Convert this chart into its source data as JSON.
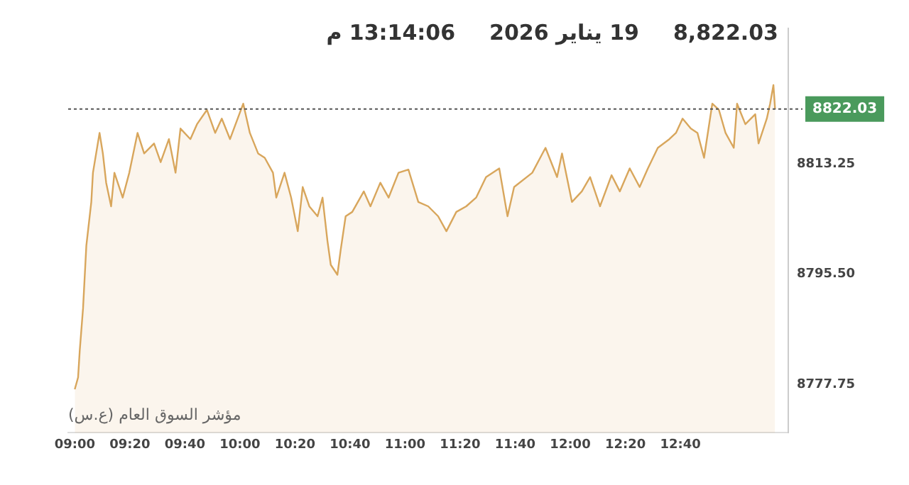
{
  "chart_data": {
    "type": "area",
    "title": "8,822.03",
    "annotations": [
      "19 يناير 2026",
      "13:14:06 م",
      "مؤشر السوق العام (ع.س)"
    ],
    "x": [
      9.0,
      9.02,
      9.03,
      9.05,
      9.07,
      9.1,
      9.11,
      9.15,
      9.17,
      9.19,
      9.22,
      9.24,
      9.29,
      9.33,
      9.38,
      9.42,
      9.48,
      9.52,
      9.57,
      9.61,
      9.64,
      9.7,
      9.74,
      9.8,
      9.85,
      9.89,
      9.94,
      10.02,
      10.06,
      10.11,
      10.15,
      10.2,
      10.22,
      10.27,
      10.31,
      10.35,
      10.38,
      10.42,
      10.47,
      10.5,
      10.53,
      10.55,
      10.59,
      10.61,
      10.64,
      10.68,
      10.75,
      10.79,
      10.85,
      10.9,
      10.96,
      11.02,
      11.08,
      11.14,
      11.2,
      11.25,
      11.31,
      11.37,
      11.43,
      11.49,
      11.57,
      11.62,
      11.66,
      11.77,
      11.85,
      11.92,
      11.95,
      12.01,
      12.07,
      12.12,
      12.18,
      12.25,
      12.3,
      12.36,
      12.42,
      12.47,
      12.53,
      12.6,
      12.64,
      12.68,
      12.73,
      12.77,
      12.81,
      12.86,
      12.9,
      12.94,
      12.99,
      13.01,
      13.06,
      13.12,
      13.14,
      13.19,
      13.21,
      13.23,
      13.24
    ],
    "series": [
      {
        "color": "#d8a65c",
        "values": [
          8777.0,
          8778.9,
          8783.2,
          8790.0,
          8800.1,
          8807.1,
          8811.8,
          8818.2,
          8814.9,
          8810.2,
          8806.4,
          8811.8,
          8807.8,
          8811.8,
          8818.2,
          8814.9,
          8816.5,
          8813.5,
          8817.2,
          8811.8,
          8818.9,
          8817.2,
          8819.6,
          8821.9,
          8818.2,
          8820.5,
          8817.2,
          8822.9,
          8818.2,
          8814.9,
          8814.2,
          8811.8,
          8807.8,
          8811.8,
          8807.8,
          8802.4,
          8809.5,
          8806.4,
          8804.8,
          8807.8,
          8800.8,
          8797.0,
          8795.4,
          8799.4,
          8804.8,
          8805.5,
          8808.8,
          8806.4,
          8810.2,
          8807.8,
          8811.8,
          8812.3,
          8807.1,
          8806.4,
          8804.8,
          8802.4,
          8805.5,
          8806.4,
          8807.8,
          8811.1,
          8812.5,
          8804.8,
          8809.5,
          8811.8,
          8815.8,
          8811.1,
          8814.9,
          8807.1,
          8808.8,
          8811.1,
          8806.4,
          8811.4,
          8808.8,
          8812.5,
          8809.5,
          8812.5,
          8815.8,
          8817.2,
          8818.2,
          8820.5,
          8818.9,
          8818.2,
          8814.2,
          8822.9,
          8821.9,
          8818.2,
          8815.8,
          8822.9,
          8819.6,
          8821.2,
          8816.5,
          8820.5,
          8822.9,
          8825.9,
          8822.0
        ]
      }
    ],
    "xlim": [
      8.96,
      13.32
    ],
    "xticks": [
      {
        "value": 9,
        "label": "09:00"
      },
      {
        "value": 9.3333,
        "label": "09:20"
      },
      {
        "value": 9.6667,
        "label": "09:40"
      },
      {
        "value": 10,
        "label": "10:00"
      },
      {
        "value": 10.3333,
        "label": "10:20"
      },
      {
        "value": 10.6667,
        "label": "10:40"
      },
      {
        "value": 11,
        "label": "11:00"
      },
      {
        "value": 11.3333,
        "label": "11:20"
      },
      {
        "value": 11.6667,
        "label": "11:40"
      },
      {
        "value": 12,
        "label": "12:00"
      },
      {
        "value": 12.3333,
        "label": "12:20"
      },
      {
        "value": 12.6667,
        "label": "12:40"
      }
    ],
    "ylim": [
      8770,
      8835
    ],
    "yticks": [
      8777.75,
      {
        "value": 8795.5,
        "label": "8795.50"
      },
      8813.25
    ],
    "ref_lines": [
      {
        "axis": "y",
        "value": 8822.03,
        "label": "8822.03",
        "line_style": "dotted"
      }
    ],
    "grid": false,
    "legend": false,
    "marker": "none",
    "line_style": "solid"
  }
}
